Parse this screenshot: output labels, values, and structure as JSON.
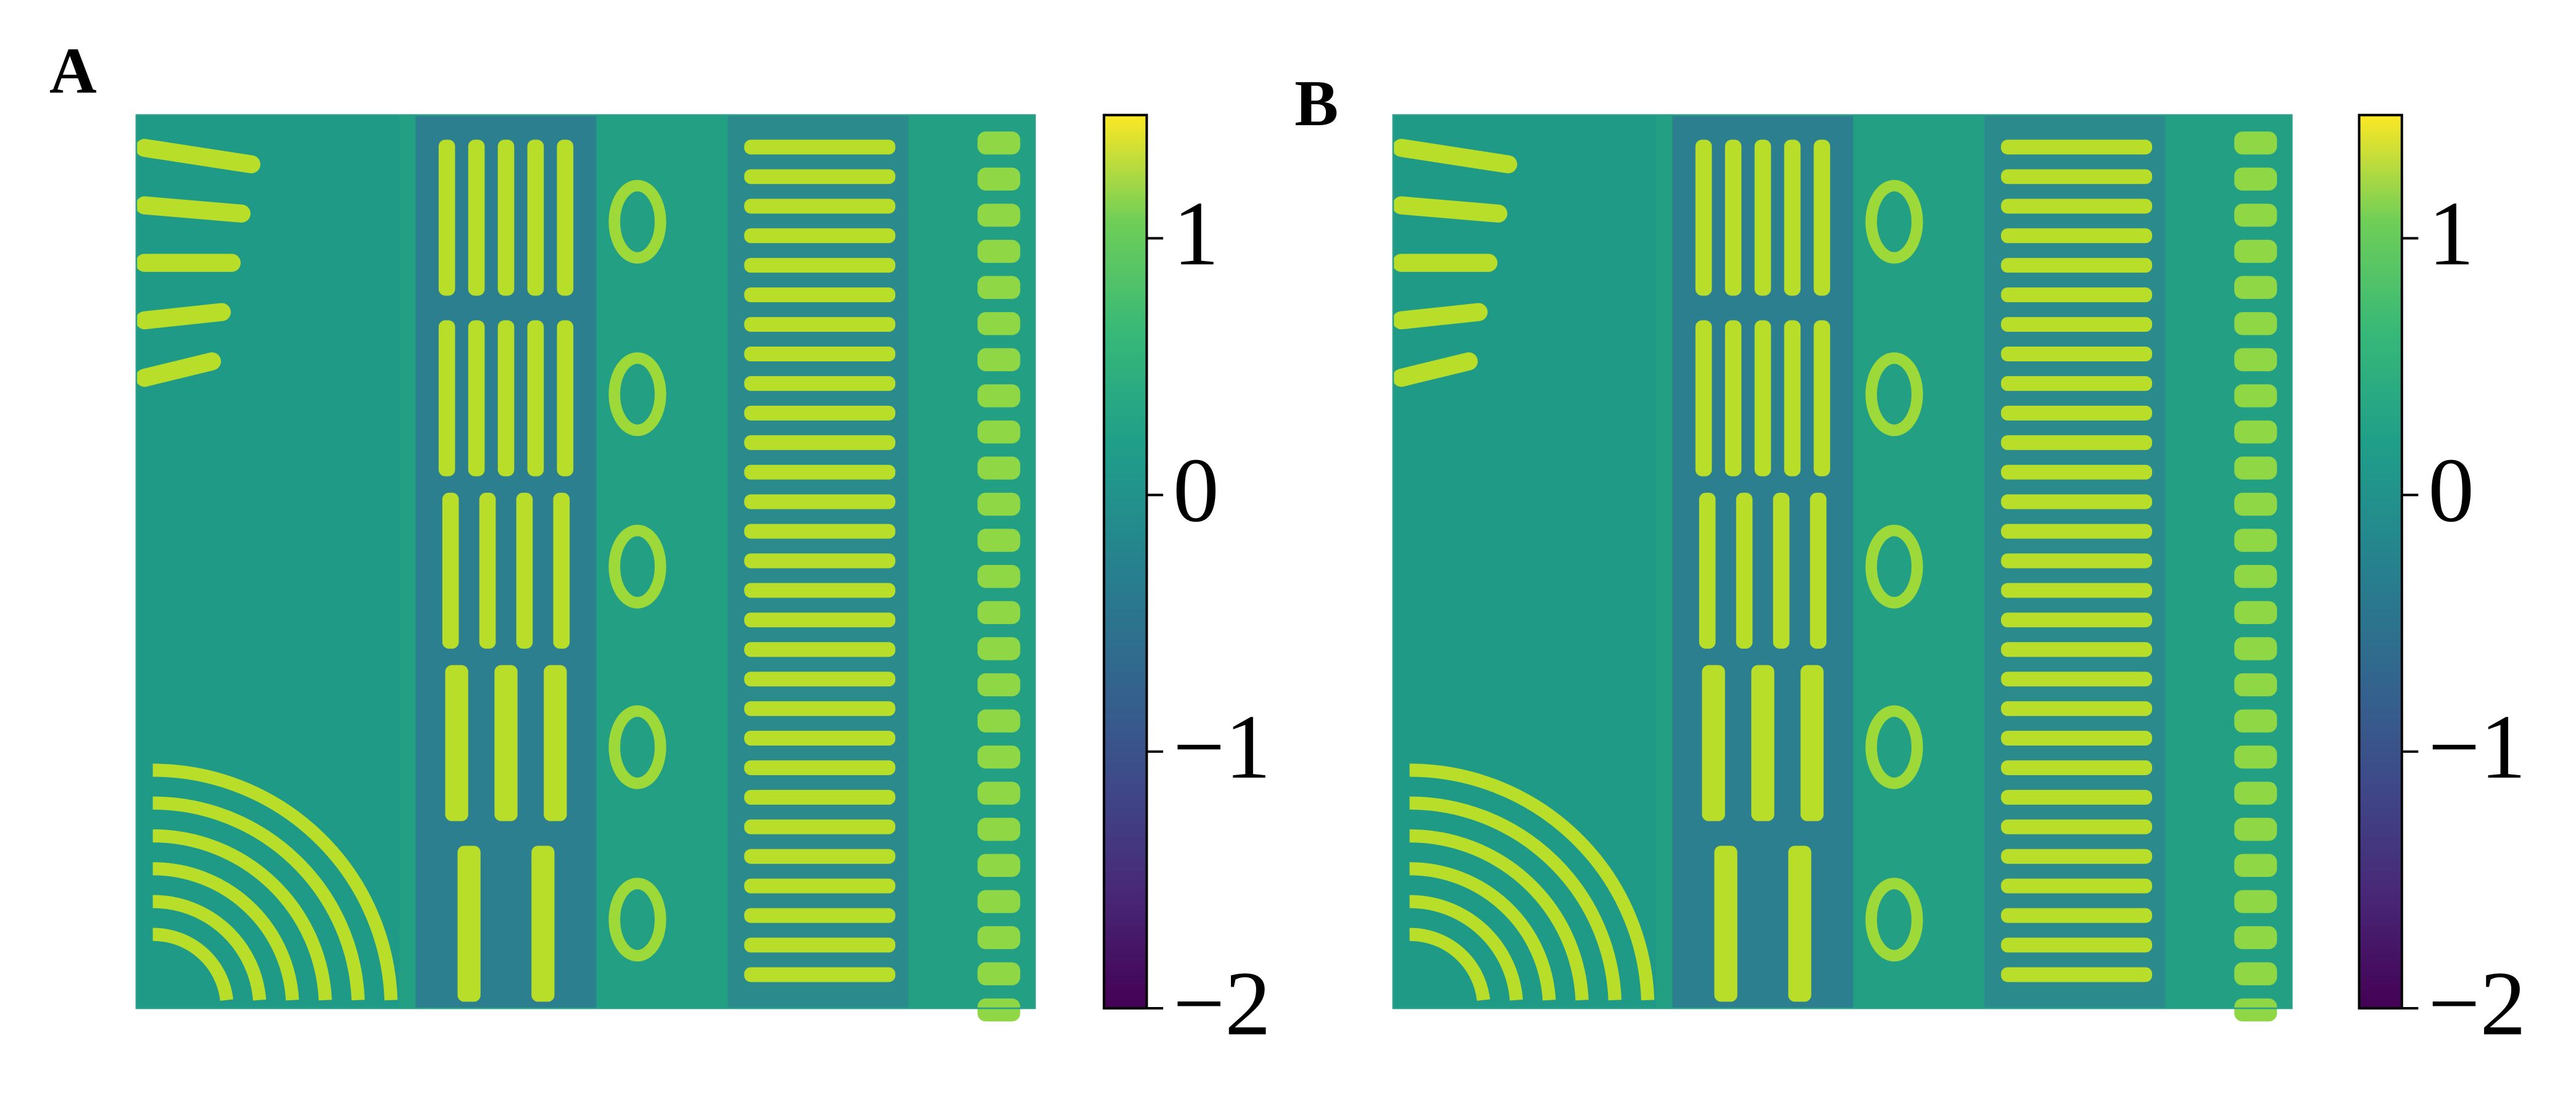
{
  "chart_data": [
    {
      "type": "heatmap",
      "label": "A",
      "clim": [
        -2,
        1.48
      ],
      "colorbar_ticks": [
        1,
        0,
        {
          "value": -1,
          "label": "−1"
        },
        {
          "value": -2,
          "label": "−2"
        }
      ]
    },
    {
      "type": "heatmap",
      "label": "B",
      "clim": [
        -2,
        1.48
      ],
      "colorbar_ticks": [
        1,
        0,
        {
          "value": -1,
          "label": "−1"
        },
        {
          "value": -2,
          "label": "−2"
        }
      ]
    }
  ]
}
